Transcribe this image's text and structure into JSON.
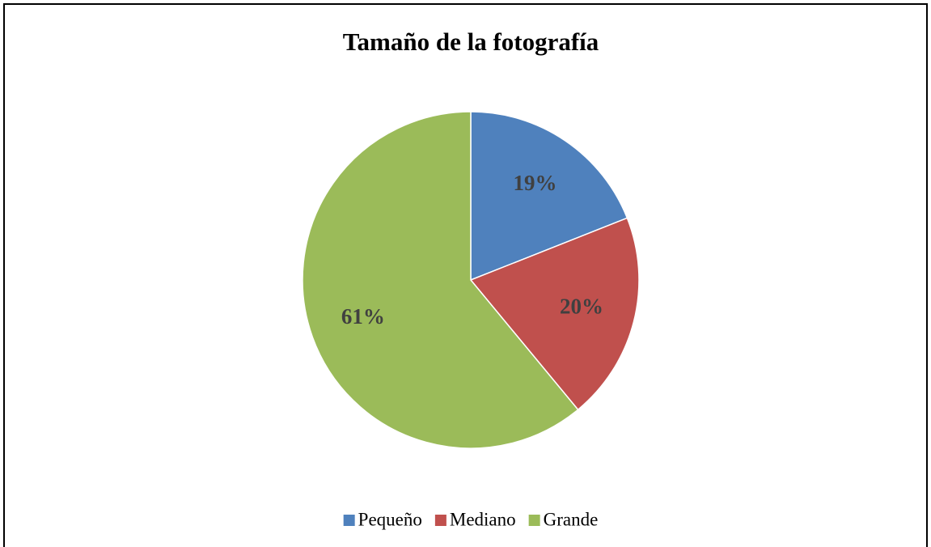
{
  "chart_data": {
    "type": "pie",
    "title": "Tamaño de la fotografía",
    "categories": [
      "Pequeño",
      "Mediano",
      "Grande"
    ],
    "values": [
      19,
      20,
      61
    ],
    "value_labels": [
      "19%",
      "20%",
      "61%"
    ],
    "colors": [
      "#4f81bd",
      "#c0504d",
      "#9bbb59"
    ],
    "legend": "bottom"
  }
}
